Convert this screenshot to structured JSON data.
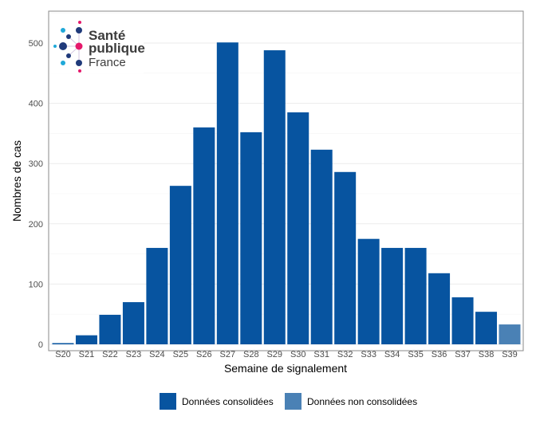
{
  "chart_data": {
    "type": "bar",
    "title": "",
    "xlabel": "Semaine de signalement",
    "ylabel": "Nombres de cas",
    "ylim": [
      0,
      550
    ],
    "yticks": [
      0,
      100,
      200,
      300,
      400,
      500
    ],
    "grid": true,
    "legend_position": "bottom",
    "categories": [
      "S20",
      "S21",
      "S22",
      "S23",
      "S24",
      "S25",
      "S26",
      "S27",
      "S28",
      "S29",
      "S30",
      "S31",
      "S32",
      "S33",
      "S34",
      "S35",
      "S36",
      "S37",
      "S38",
      "S39"
    ],
    "values": [
      2,
      15,
      49,
      70,
      160,
      263,
      360,
      501,
      352,
      488,
      385,
      323,
      286,
      175,
      160,
      160,
      118,
      78,
      54,
      33
    ],
    "status": [
      "c",
      "c",
      "c",
      "c",
      "c",
      "c",
      "c",
      "c",
      "c",
      "c",
      "c",
      "c",
      "c",
      "c",
      "c",
      "c",
      "c",
      "c",
      "c",
      "n"
    ],
    "series": [
      {
        "key": "c",
        "name": "Données consolidées",
        "color": "#0754a0"
      },
      {
        "key": "n",
        "name": "Données non consolidées",
        "color": "#4a81b5"
      }
    ]
  },
  "logo": {
    "line1": "Santé",
    "line2": "publique",
    "line3": "France"
  }
}
